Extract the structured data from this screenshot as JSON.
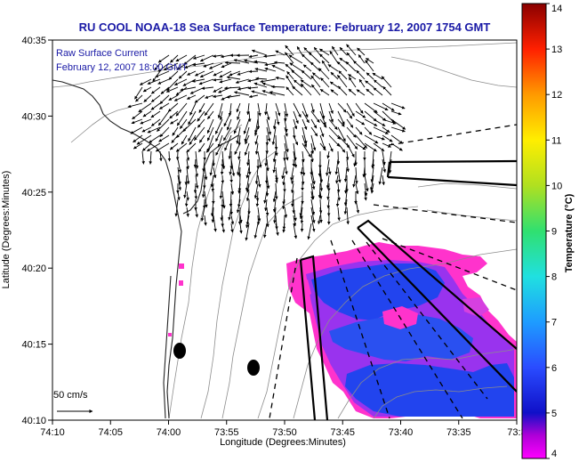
{
  "title": "RU COOL  NOAA-18  Sea Surface Temperature:  February 12, 2007 1754 GMT",
  "annotation": {
    "line1": "Raw Surface Current",
    "line2": "February 12, 2007 18:00 GMT"
  },
  "axes": {
    "xlabel": "Longitude (Degrees:Minutes)",
    "ylabel": "Latitude (Degrees:Minutes)",
    "x_ticks": [
      "74:10",
      "74:05",
      "74:00",
      "73:55",
      "73:50",
      "73:45",
      "73:40",
      "73:35",
      "73:3"
    ],
    "y_ticks": [
      "40:10",
      "40:15",
      "40:20",
      "40:25",
      "40:30",
      "40:35"
    ]
  },
  "colorbar": {
    "label": "Temperature (°C)",
    "ticks": [
      "4",
      "5",
      "6",
      "7",
      "8",
      "9",
      "10",
      "11",
      "12",
      "13",
      "14"
    ],
    "range": [
      4,
      14
    ]
  },
  "scale_arrow_label": "50 cm/s",
  "colors": {
    "title": "#1a1aa6",
    "land_contours": "#8c8c8c",
    "coast": "#222222",
    "sst_warm": "#ff33cc",
    "sst_cool": "#2244ee"
  }
}
